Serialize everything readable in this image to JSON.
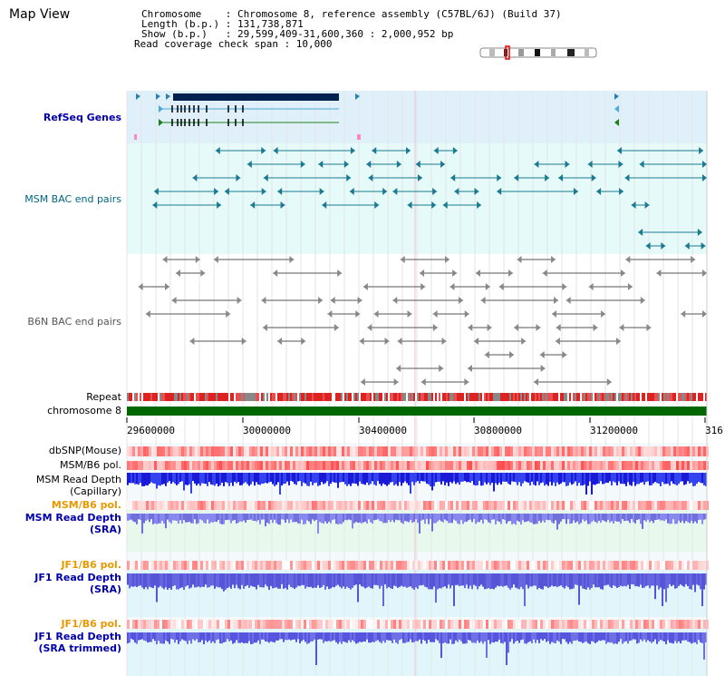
{
  "title": "Map View",
  "info": {
    "line1": "Chromosome    : Chromosome 8, reference assembly (C57BL/6J) (Build 37)",
    "line2": "Length (b.p.) : 131,738,871",
    "line3": "Show (b.p.)   : 29,599,409-31,600,360 : 2,000,952 bp",
    "line4": "Read coverage check span : 10,000"
  },
  "tracks": {
    "refseq": "RefSeq Genes",
    "msm_bac": "MSM BAC end pairs",
    "b6n_bac": "B6N BAC end pairs",
    "repeat": "Repeat",
    "chromosome": "chromosome 8",
    "dbsnp": "dbSNP(Mouse)",
    "msm_pol1": "MSM/B6 pol.",
    "msm_depth_cap_1": "MSM Read Depth",
    "msm_depth_cap_2": "(Capillary)",
    "msm_pol2": "MSM/B6 pol.",
    "msm_depth_sra_1": "MSM Read Depth",
    "msm_depth_sra_2": "(SRA)",
    "jf1_pol1": "JF1/B6 pol.",
    "jf1_depth_1": "JF1 Read Depth",
    "jf1_depth_2": "(SRA)",
    "jf1_pol2": "JF1/B6 pol.",
    "jf1_depth_t1": "JF1 Read Depth",
    "jf1_depth_t2": "(SRA trimmed)"
  },
  "axis_ticks": [
    "29600000",
    "30000000",
    "30400000",
    "30800000",
    "31200000",
    "316"
  ],
  "colors": {
    "refseq_bg": "#dff0fa",
    "msm_bg": "#e6fafa",
    "repeat_red": "#dd2222",
    "chromosome_green": "#006600",
    "depth_blue": "#1a1ad6",
    "pol_red": "#ee3333"
  }
}
